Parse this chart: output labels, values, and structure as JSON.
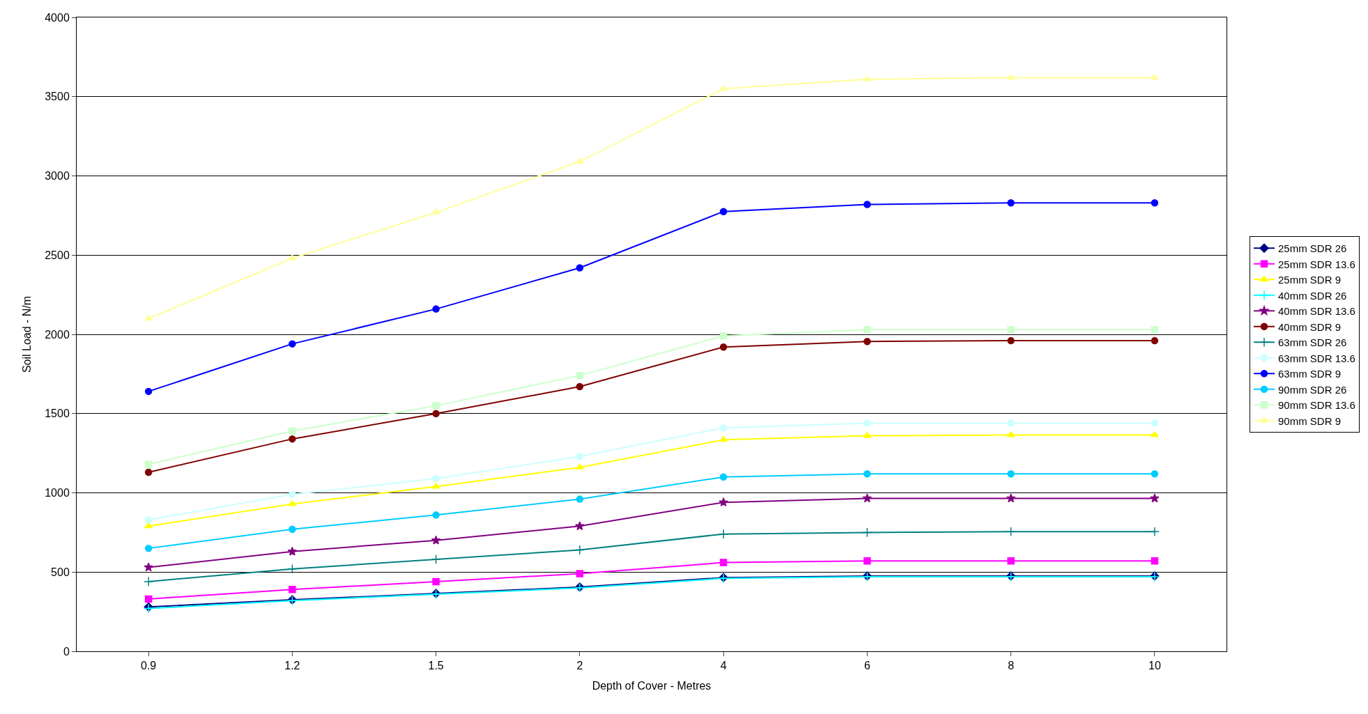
{
  "chart_data": {
    "type": "line",
    "xlabel": "Depth of Cover - Metres",
    "ylabel": "Soil Load - N/m",
    "categories": [
      "0.9",
      "1.2",
      "1.5",
      "2",
      "4",
      "6",
      "8",
      "10"
    ],
    "ylim": [
      0,
      4000
    ],
    "yticks": [
      0,
      500,
      1000,
      1500,
      2000,
      2500,
      3000,
      3500,
      4000
    ],
    "grid": "y",
    "legend": "right",
    "series": [
      {
        "name": "25mm SDR 26",
        "color": "#000080",
        "marker": "diamond",
        "values": [
          280,
          325,
          365,
          405,
          465,
          475,
          475,
          475
        ]
      },
      {
        "name": "25mm SDR 13.6",
        "color": "#ff00ff",
        "marker": "square",
        "values": [
          330,
          390,
          440,
          490,
          560,
          570,
          570,
          570
        ]
      },
      {
        "name": "25mm SDR 9",
        "color": "#ffff00",
        "marker": "triangle",
        "values": [
          790,
          930,
          1040,
          1160,
          1335,
          1360,
          1365,
          1365
        ]
      },
      {
        "name": "40mm SDR 26",
        "color": "#00ffff",
        "marker": "cross",
        "values": [
          270,
          320,
          360,
          400,
          460,
          470,
          470,
          470
        ]
      },
      {
        "name": "40mm SDR 13.6",
        "color": "#800080",
        "marker": "star",
        "values": [
          530,
          630,
          700,
          790,
          940,
          965,
          965,
          965
        ]
      },
      {
        "name": "40mm SDR 9",
        "color": "#800000",
        "marker": "circle",
        "values": [
          1130,
          1340,
          1500,
          1670,
          1920,
          1955,
          1960,
          1960
        ]
      },
      {
        "name": "63mm SDR 26",
        "color": "#008080",
        "marker": "cross",
        "values": [
          440,
          520,
          580,
          640,
          740,
          750,
          755,
          755
        ]
      },
      {
        "name": "63mm SDR 13.6",
        "color": "#ccffff",
        "marker": "circle",
        "values": [
          830,
          990,
          1090,
          1230,
          1410,
          1440,
          1440,
          1440
        ]
      },
      {
        "name": "63mm SDR 9",
        "color": "#0000ff",
        "marker": "circle",
        "values": [
          1640,
          1940,
          2160,
          2420,
          2775,
          2820,
          2830,
          2830
        ]
      },
      {
        "name": "90mm SDR 26",
        "color": "#00ccff",
        "marker": "circle",
        "values": [
          650,
          770,
          860,
          960,
          1100,
          1120,
          1120,
          1120
        ]
      },
      {
        "name": "90mm SDR 13.6",
        "color": "#ccffcc",
        "marker": "square",
        "values": [
          1180,
          1390,
          1550,
          1740,
          1990,
          2030,
          2030,
          2030
        ]
      },
      {
        "name": "90mm SDR 9",
        "color": "#ffff99",
        "marker": "triangle",
        "values": [
          2100,
          2480,
          2770,
          3090,
          3550,
          3610,
          3620,
          3620
        ]
      }
    ]
  }
}
